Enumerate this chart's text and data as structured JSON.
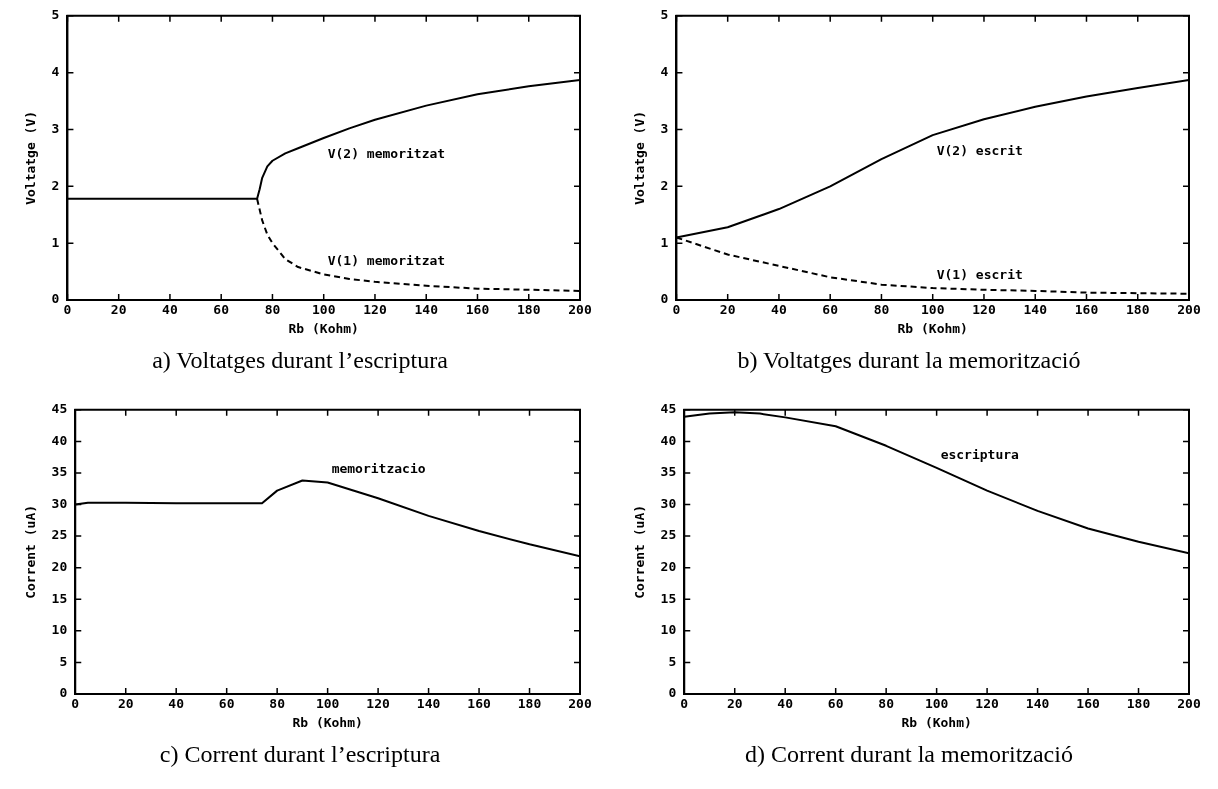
{
  "chart_data": [
    {
      "type": "line",
      "title": "a) Voltatges durant l’escriptura",
      "xlabel": "Rb (Kohm)",
      "ylabel": "Voltatge (V)",
      "xlim": [
        0,
        200
      ],
      "ylim": [
        0,
        5
      ],
      "xticks": [
        0,
        20,
        40,
        60,
        80,
        100,
        120,
        140,
        160,
        180,
        200
      ],
      "yticks": [
        0,
        1,
        2,
        3,
        4,
        5
      ],
      "series": [
        {
          "name": "V(2) memoritzat",
          "color": "#000000",
          "line_style": "solid",
          "x": [
            0,
            20,
            40,
            60,
            74,
            75,
            76,
            78,
            80,
            85,
            90,
            100,
            110,
            120,
            140,
            160,
            180,
            200
          ],
          "values": [
            1.78,
            1.78,
            1.78,
            1.78,
            1.78,
            1.95,
            2.15,
            2.35,
            2.45,
            2.58,
            2.67,
            2.85,
            3.02,
            3.17,
            3.42,
            3.62,
            3.76,
            3.87
          ]
        },
        {
          "name": "V(1) memoritzat",
          "color": "#000000",
          "line_style": "dashed",
          "x": [
            74,
            76,
            78,
            80,
            85,
            90,
            100,
            110,
            120,
            140,
            160,
            180,
            200
          ],
          "values": [
            1.78,
            1.4,
            1.15,
            1.0,
            0.72,
            0.58,
            0.45,
            0.37,
            0.32,
            0.25,
            0.2,
            0.18,
            0.16
          ]
        }
      ]
    },
    {
      "type": "line",
      "title": "b) Voltatges durant la memorització",
      "xlabel": "Rb (Kohm)",
      "ylabel": "Voltatge (V)",
      "xlim": [
        0,
        200
      ],
      "ylim": [
        0,
        5
      ],
      "xticks": [
        0,
        20,
        40,
        60,
        80,
        100,
        120,
        140,
        160,
        180,
        200
      ],
      "yticks": [
        0,
        1,
        2,
        3,
        4,
        5
      ],
      "series": [
        {
          "name": "V(2) escrit",
          "color": "#000000",
          "line_style": "solid",
          "x": [
            0,
            20,
            40,
            60,
            80,
            100,
            120,
            140,
            160,
            180,
            200
          ],
          "values": [
            1.1,
            1.28,
            1.6,
            2.0,
            2.48,
            2.9,
            3.18,
            3.4,
            3.58,
            3.73,
            3.87
          ]
        },
        {
          "name": "V(1) escrit",
          "color": "#000000",
          "line_style": "dashed",
          "x": [
            0,
            20,
            40,
            60,
            80,
            100,
            120,
            140,
            160,
            180,
            200
          ],
          "values": [
            1.1,
            0.8,
            0.6,
            0.4,
            0.27,
            0.21,
            0.18,
            0.16,
            0.13,
            0.12,
            0.11
          ]
        }
      ]
    },
    {
      "type": "line",
      "title": "c) Corrent durant l’escriptura",
      "xlabel": "Rb (Kohm)",
      "ylabel": "Corrent (uA)",
      "xlim": [
        0,
        200
      ],
      "ylim": [
        0,
        45
      ],
      "xticks": [
        0,
        20,
        40,
        60,
        80,
        100,
        120,
        140,
        160,
        180,
        200
      ],
      "yticks": [
        0,
        5,
        10,
        15,
        20,
        25,
        30,
        35,
        40,
        45
      ],
      "series": [
        {
          "name": "memoritzacio",
          "color": "#000000",
          "line_style": "solid",
          "x": [
            0,
            5,
            20,
            40,
            60,
            74,
            80,
            90,
            100,
            120,
            140,
            160,
            180,
            200
          ],
          "values": [
            30,
            30.3,
            30.3,
            30.2,
            30.2,
            30.2,
            32.2,
            33.8,
            33.5,
            31.0,
            28.2,
            25.8,
            23.7,
            21.8
          ]
        }
      ]
    },
    {
      "type": "line",
      "title": "d) Corrent durant la memorització",
      "xlabel": "Rb (Kohm)",
      "ylabel": "Corrent (uA)",
      "xlim": [
        0,
        200
      ],
      "ylim": [
        0,
        45
      ],
      "xticks": [
        0,
        20,
        40,
        60,
        80,
        100,
        120,
        140,
        160,
        180,
        200
      ],
      "yticks": [
        0,
        5,
        10,
        15,
        20,
        25,
        30,
        35,
        40,
        45
      ],
      "series": [
        {
          "name": "escriptura",
          "color": "#000000",
          "line_style": "solid",
          "x": [
            0,
            10,
            20,
            30,
            40,
            60,
            80,
            100,
            120,
            140,
            160,
            180,
            200
          ],
          "values": [
            43.9,
            44.4,
            44.6,
            44.4,
            43.8,
            42.4,
            39.3,
            35.8,
            32.2,
            29.0,
            26.2,
            24.1,
            22.3
          ]
        }
      ]
    }
  ]
}
